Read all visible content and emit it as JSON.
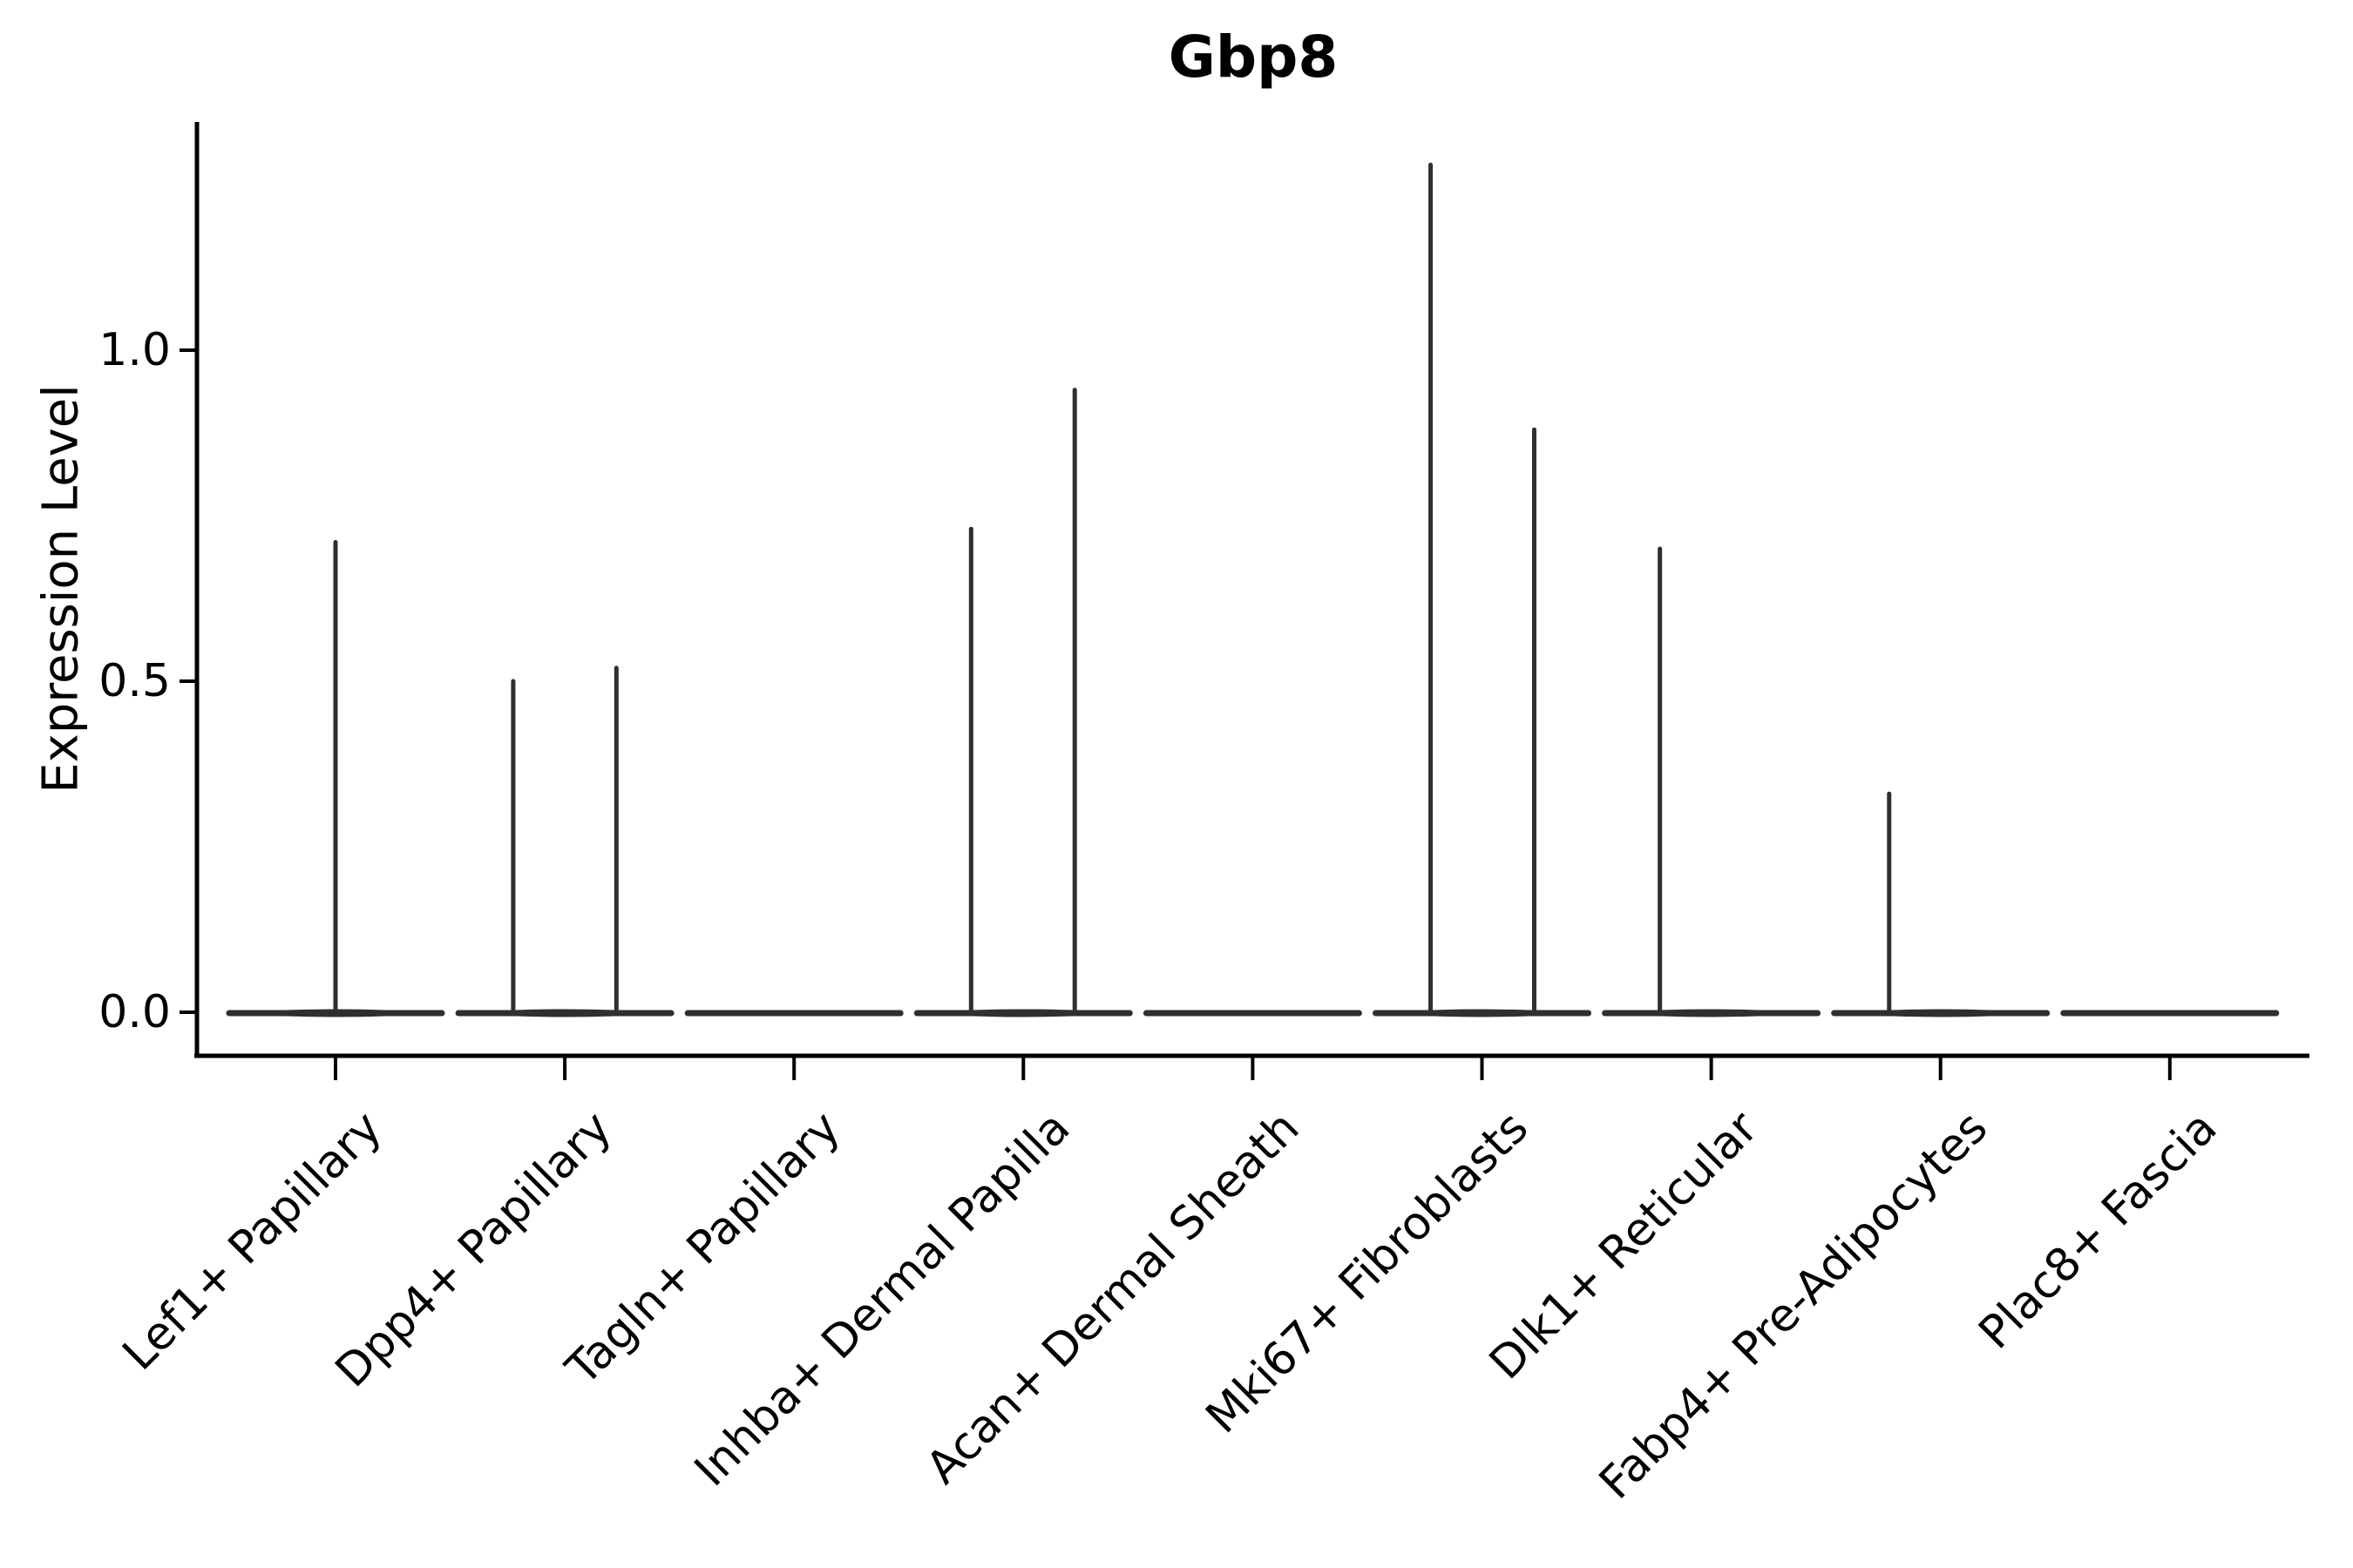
{
  "title": "Gbp8",
  "axes": {
    "ylabel": "Expression Level",
    "ytick_labels": [
      "0.0",
      "0.5",
      "1.0"
    ]
  },
  "colors": {
    "axis": "#000000",
    "text": "#000000",
    "violin": "#2f2f2f",
    "background": "#ffffff"
  },
  "chart_data": {
    "type": "violin",
    "title": "Gbp8",
    "ylabel": "Expression Level",
    "yticks": [
      0.0,
      0.5,
      1.0
    ],
    "ylim": [
      -0.065,
      1.345
    ],
    "legend": "none",
    "grid": false,
    "categories": [
      "Lef1+ Papillary",
      "Dpp4+ Papillary",
      "Tagln+ Papillary",
      "Inhba+ Dermal Papilla",
      "Acan+ Dermal Sheath",
      "Mki67+ Fibroblasts",
      "Dlk1+ Reticular",
      "Fabp4+ Pre-Adipocytes",
      "Plac8+ Fascia"
    ],
    "violins": [
      {
        "category": "Lef1+ Papillary",
        "baseline_value": 0.0,
        "spikes": [
          {
            "dx_frac": 0.0,
            "value": 0.71
          }
        ]
      },
      {
        "category": "Dpp4+ Papillary",
        "baseline_value": 0.0,
        "spikes": [
          {
            "dx_frac": -0.225,
            "value": 0.5
          },
          {
            "dx_frac": 0.225,
            "value": 0.52
          }
        ]
      },
      {
        "category": "Tagln+ Papillary",
        "baseline_value": 0.0,
        "spikes": []
      },
      {
        "category": "Inhba+ Dermal Papilla",
        "baseline_value": 0.0,
        "spikes": [
          {
            "dx_frac": -0.228,
            "value": 0.73
          },
          {
            "dx_frac": 0.224,
            "value": 0.94
          }
        ]
      },
      {
        "category": "Acan+ Dermal Sheath",
        "baseline_value": 0.0,
        "spikes": []
      },
      {
        "category": "Mki67+ Fibroblasts",
        "baseline_value": 0.0,
        "spikes": [
          {
            "dx_frac": -0.224,
            "value": 1.28
          },
          {
            "dx_frac": 0.228,
            "value": 0.88
          }
        ]
      },
      {
        "category": "Dlk1+ Reticular",
        "baseline_value": 0.0,
        "spikes": [
          {
            "dx_frac": -0.224,
            "value": 0.7
          }
        ]
      },
      {
        "category": "Fabp4+ Pre-Adipocytes",
        "baseline_value": 0.0,
        "spikes": [
          {
            "dx_frac": -0.224,
            "value": 0.33
          }
        ]
      },
      {
        "category": "Plac8+ Fascia",
        "baseline_value": 0.0,
        "spikes": []
      }
    ]
  }
}
